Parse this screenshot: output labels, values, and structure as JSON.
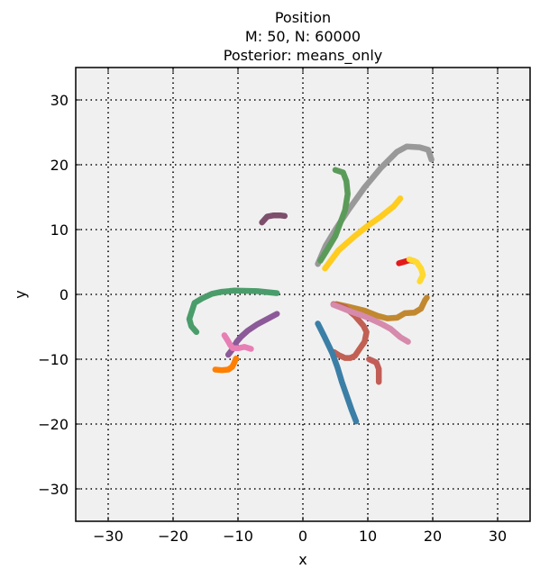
{
  "chart_data": {
    "type": "line",
    "title_lines": [
      "Position",
      "M: 50, N: 60000",
      "Posterior: means_only"
    ],
    "xlabel": "x",
    "ylabel": "y",
    "xlim": [
      -35,
      35
    ],
    "ylim": [
      -35,
      35
    ],
    "xticks": [
      -30,
      -20,
      -10,
      0,
      10,
      20,
      30
    ],
    "yticks": [
      -30,
      -20,
      -10,
      0,
      10,
      20,
      30
    ],
    "xtick_labels": [
      "−30",
      "−20",
      "−10",
      "0",
      "10",
      "20",
      "30"
    ],
    "ytick_labels": [
      "−30",
      "−20",
      "−10",
      "0",
      "10",
      "20",
      "30"
    ],
    "grid": true,
    "background_color": "#f0f0f0",
    "series": [
      {
        "color": "#999999",
        "x": [
          2.3,
          3.5,
          5.0,
          7.0,
          9.5,
          12.0,
          14.5,
          16.0,
          18.0,
          19.3,
          19.8
        ],
        "y": [
          4.7,
          7.5,
          10.0,
          13.0,
          16.5,
          19.5,
          22.0,
          22.8,
          22.7,
          22.3,
          20.8
        ]
      },
      {
        "color": "#5b9b5a",
        "x": [
          5.0,
          6.2,
          6.7,
          6.9,
          6.5,
          5.0,
          3.5,
          2.7
        ],
        "y": [
          19.2,
          18.8,
          17.5,
          15.5,
          13.0,
          9.0,
          6.5,
          5.2
        ]
      },
      {
        "color": "#ffcc1f",
        "x": [
          3.4,
          5.5,
          8.0,
          10.0,
          12.0,
          14.0,
          15.0
        ],
        "y": [
          4.0,
          6.8,
          9.0,
          10.6,
          12.0,
          13.6,
          14.8
        ]
      },
      {
        "color": "#7d4f6d",
        "x": [
          -6.3,
          -5.5,
          -4.5,
          -3.5,
          -2.8
        ],
        "y": [
          11.1,
          12.0,
          12.2,
          12.2,
          12.1
        ]
      },
      {
        "color": "#e31a1c",
        "x": [
          14.8,
          15.5,
          16.5,
          17.2
        ],
        "y": [
          4.8,
          5.0,
          5.3,
          5.1
        ]
      },
      {
        "color": "#ffd92f",
        "x": [
          16.4,
          17.5,
          18.2,
          18.5,
          18.0
        ],
        "y": [
          5.4,
          5.0,
          4.0,
          3.0,
          2.0
        ]
      },
      {
        "color": "#4a9d6a",
        "x": [
          -4.0,
          -7.0,
          -10.5,
          -12.5,
          -14.0,
          -15.5,
          -16.7,
          -17.5,
          -17.2,
          -16.4
        ],
        "y": [
          0.2,
          0.5,
          0.6,
          0.4,
          0.1,
          -0.6,
          -1.3,
          -3.8,
          -4.9,
          -5.8
        ]
      },
      {
        "color": "#c1882f",
        "x": [
          5.2,
          7.0,
          9.5,
          11.5,
          13.0,
          14.5,
          15.7,
          17.2,
          18.2,
          18.8,
          19.1
        ],
        "y": [
          -1.5,
          -1.9,
          -2.5,
          -3.3,
          -3.7,
          -3.6,
          -2.9,
          -2.8,
          -2.2,
          -0.9,
          -0.5
        ]
      },
      {
        "color": "#c16053",
        "x": [
          4.7,
          6.5,
          8.0,
          9.3,
          9.8,
          9.5,
          8.8,
          8.0,
          7.3,
          6.5,
          5.6,
          4.8
        ],
        "y": [
          -1.5,
          -2.0,
          -3.3,
          -4.8,
          -5.8,
          -7.3,
          -8.3,
          -9.5,
          -9.8,
          -9.8,
          -9.4,
          -8.9
        ]
      },
      {
        "color": "#d68aac",
        "x": [
          4.7,
          6.0,
          7.5,
          9.0,
          10.5,
          12.0,
          13.5,
          15.0,
          16.2
        ],
        "y": [
          -1.6,
          -2.1,
          -2.7,
          -3.2,
          -3.8,
          -4.5,
          -5.3,
          -6.6,
          -7.3
        ]
      },
      {
        "color": "#3b7fa7",
        "x": [
          2.3,
          3.3,
          4.5,
          5.3,
          6.0,
          6.8,
          7.5,
          8.2
        ],
        "y": [
          -4.5,
          -6.5,
          -9.0,
          -11.2,
          -13.5,
          -15.8,
          -17.8,
          -19.6
        ]
      },
      {
        "color": "#c25d57",
        "x": [
          10.2,
          11.3,
          11.7,
          11.7
        ],
        "y": [
          -10.0,
          -10.5,
          -11.5,
          -13.5
        ]
      },
      {
        "color": "#8c5a98",
        "x": [
          -4.0,
          -5.5,
          -7.0,
          -8.5,
          -9.5,
          -10.2,
          -10.8,
          -11.5
        ],
        "y": [
          -3.0,
          -3.8,
          -4.6,
          -5.6,
          -6.5,
          -7.3,
          -8.4,
          -9.3
        ]
      },
      {
        "color": "#e77fb5",
        "x": [
          -12.1,
          -11.6,
          -11.2,
          -10.8,
          -10.0,
          -9.0,
          -8.0
        ],
        "y": [
          -6.3,
          -7.1,
          -7.8,
          -8.3,
          -8.3,
          -8.1,
          -8.4
        ]
      },
      {
        "color": "#ff7f00",
        "x": [
          -13.5,
          -12.5,
          -11.5,
          -10.9,
          -10.6,
          -10.3
        ],
        "y": [
          -11.6,
          -11.7,
          -11.6,
          -11.2,
          -10.6,
          -9.9
        ]
      }
    ]
  }
}
